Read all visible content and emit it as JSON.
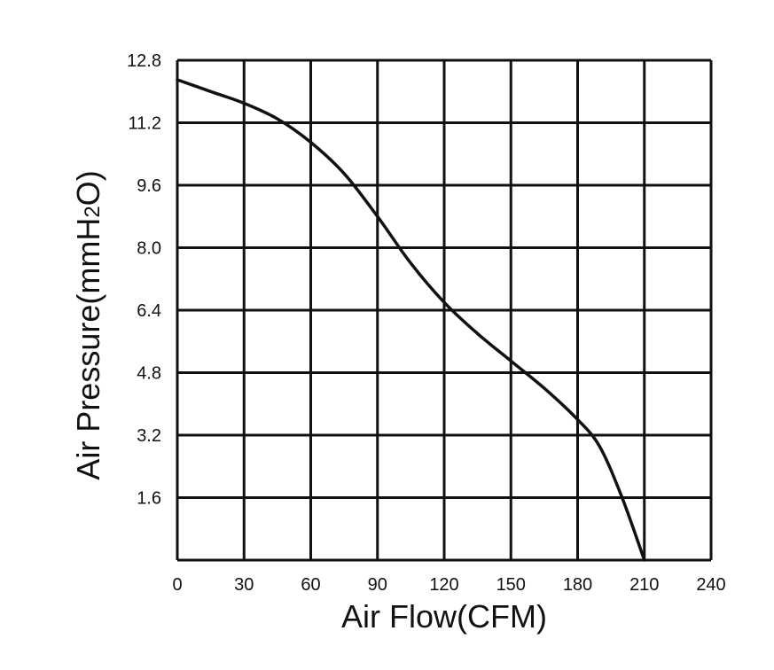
{
  "chart_data": {
    "type": "line",
    "xlabel": "Air Flow(CFM)",
    "ylabel_main": "Air Pressure(mmH",
    "ylabel_sub": "2",
    "ylabel_end": "O)",
    "xlim": [
      0,
      240
    ],
    "ylim": [
      0,
      12.8
    ],
    "x_ticks": [
      "0",
      "30",
      "60",
      "90",
      "120",
      "150",
      "180",
      "210",
      "240"
    ],
    "y_ticks": [
      "1.6",
      "3.2",
      "4.8",
      "6.4",
      "8.0",
      "9.6",
      "11.2",
      "12.8"
    ],
    "grid": true,
    "series": [
      {
        "x": [
          0,
          15,
          30,
          45,
          60,
          75,
          90,
          105,
          120,
          135,
          150,
          165,
          180,
          190,
          200,
          210
        ],
        "y": [
          12.3,
          12.0,
          11.7,
          11.3,
          10.7,
          9.9,
          8.8,
          7.6,
          6.6,
          5.8,
          5.1,
          4.4,
          3.6,
          2.9,
          1.6,
          0.0
        ]
      }
    ]
  }
}
